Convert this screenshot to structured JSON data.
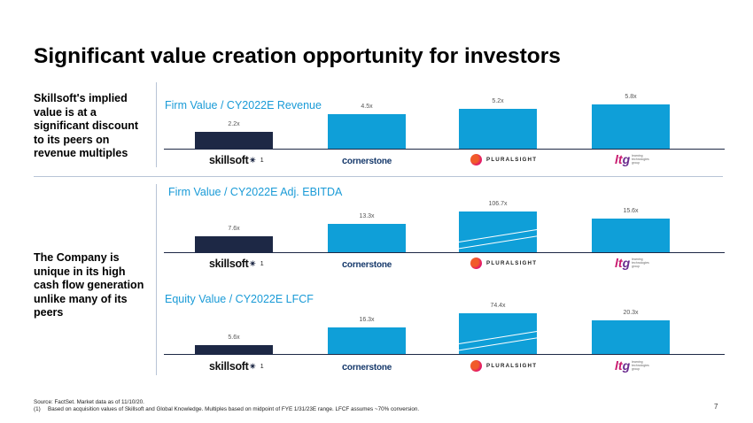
{
  "page": {
    "title": "Significant value creation opportunity for investors",
    "left_text_1": "Skillsoft's implied value is at a significant discount to its peers on revenue multiples",
    "left_text_2": "The Company is unique in its high cash flow generation unlike many of its peers",
    "footnote_source": "Source: FactSet. Market data as of 11/10/20.",
    "footnote_1_marker": "(1)",
    "footnote_1": "Based on acquisition values of Skillsoft and Global Knowledge. Multiples based on midpoint of FYE 1/31/23E range. LFCF assumes ~70% conversion.",
    "page_number": "7"
  },
  "colors": {
    "skillsoft_bar": "#1d2845",
    "peer_bar": "#0f9fd8",
    "title_blue": "#1a9bd7",
    "divider": "#b8c4d6"
  },
  "logos": {
    "skillsoft": "skillsoft",
    "skillsoft_marker": "1",
    "cornerstone": "ornerstone",
    "cornerstone_c": "c",
    "pluralsight": "PLURALSIGHT",
    "ltg_l": "lt",
    "ltg_g": "g",
    "ltg_sub": "learning technologies group"
  },
  "chart_data": [
    {
      "type": "bar",
      "title": "Firm Value / CY2022E Revenue",
      "categories": [
        "Skillsoft",
        "Cornerstone",
        "Pluralsight",
        "LTG"
      ],
      "values": [
        2.2,
        4.5,
        5.2,
        5.8
      ],
      "labels": [
        "2.2x",
        "4.5x",
        "5.2x",
        "5.8x"
      ],
      "broken_axis": [
        false,
        false,
        false,
        false
      ]
    },
    {
      "type": "bar",
      "title": "Firm Value / CY2022E Adj. EBITDA",
      "categories": [
        "Skillsoft",
        "Cornerstone",
        "Pluralsight",
        "LTG"
      ],
      "values": [
        7.6,
        13.3,
        106.7,
        15.6
      ],
      "labels": [
        "7.6x",
        "13.3x",
        "106.7x",
        "15.6x"
      ],
      "broken_axis": [
        false,
        false,
        true,
        false
      ]
    },
    {
      "type": "bar",
      "title": "Equity Value / CY2022E LFCF",
      "categories": [
        "Skillsoft",
        "Cornerstone",
        "Pluralsight",
        "LTG"
      ],
      "values": [
        5.6,
        16.3,
        74.4,
        20.3
      ],
      "labels": [
        "5.6x",
        "16.3x",
        "74.4x",
        "20.3x"
      ],
      "broken_axis": [
        false,
        false,
        true,
        false
      ]
    }
  ]
}
